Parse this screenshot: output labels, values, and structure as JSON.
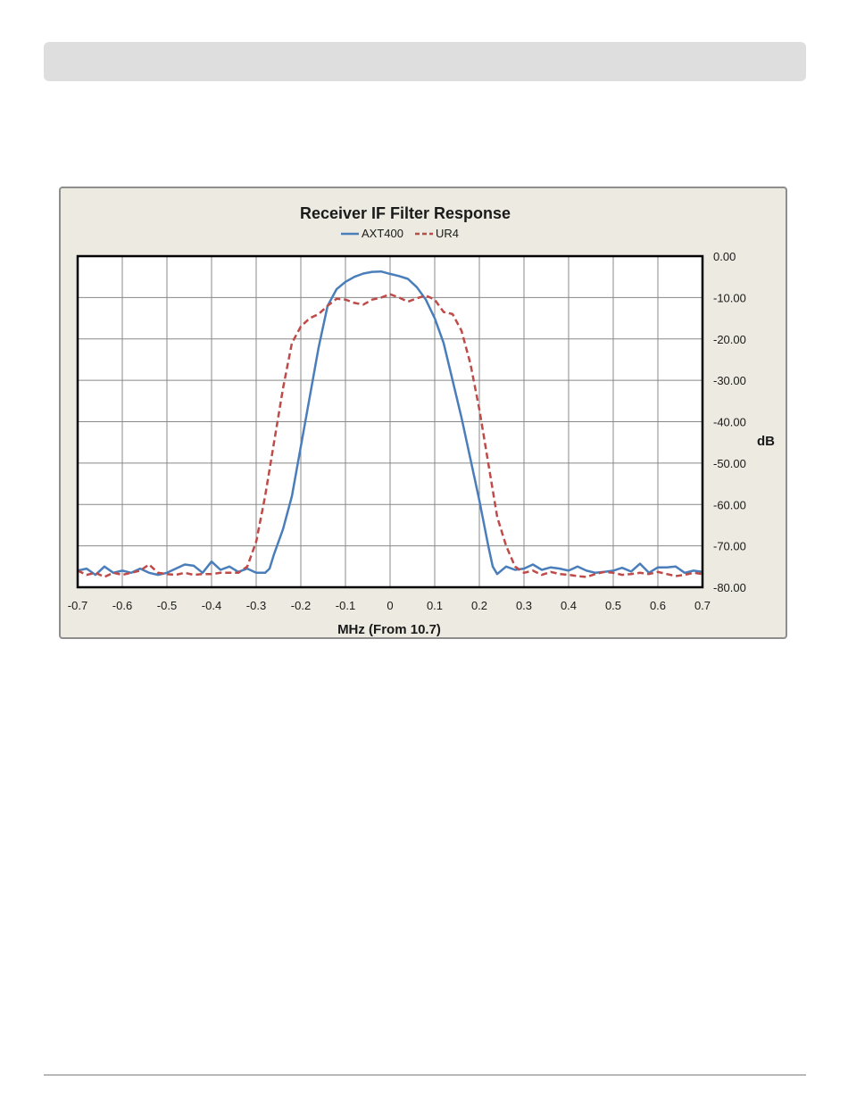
{
  "chart_data": {
    "type": "line",
    "title": "Receiver IF Filter Response",
    "xlabel": "MHz (From 10.7)",
    "ylabel": "dB",
    "xlim": [
      -0.7,
      0.7
    ],
    "ylim": [
      -80,
      0
    ],
    "x_ticks": [
      -0.7,
      -0.6,
      -0.5,
      -0.4,
      -0.3,
      -0.2,
      -0.1,
      0,
      0.1,
      0.2,
      0.3,
      0.4,
      0.5,
      0.6,
      0.7
    ],
    "x_tick_labels": [
      "-0.7",
      "-0.6",
      "-0.5",
      "-0.4",
      "-0.3",
      "-0.2",
      "-0.1",
      "0",
      "0.1",
      "0.2",
      "0.3",
      "0.4",
      "0.5",
      "0.6",
      "0.7"
    ],
    "y_ticks": [
      0,
      -10,
      -20,
      -30,
      -40,
      -50,
      -60,
      -70,
      -80
    ],
    "y_tick_labels": [
      "0.00",
      "-10.00",
      "-20.00",
      "-30.00",
      "-40.00",
      "-50.00",
      "-60.00",
      "-70.00",
      "-80.00"
    ],
    "y_axis_side": "right",
    "grid": true,
    "legend_position": "top",
    "series": [
      {
        "name": "AXT400",
        "color": "#4a7ebb",
        "style": "solid",
        "x": [
          -0.7,
          -0.68,
          -0.66,
          -0.64,
          -0.62,
          -0.6,
          -0.58,
          -0.56,
          -0.54,
          -0.52,
          -0.5,
          -0.48,
          -0.46,
          -0.44,
          -0.42,
          -0.4,
          -0.38,
          -0.36,
          -0.34,
          -0.32,
          -0.3,
          -0.28,
          -0.27,
          -0.26,
          -0.24,
          -0.22,
          -0.2,
          -0.18,
          -0.16,
          -0.14,
          -0.12,
          -0.1,
          -0.08,
          -0.06,
          -0.04,
          -0.02,
          0.0,
          0.02,
          0.04,
          0.06,
          0.08,
          0.1,
          0.12,
          0.14,
          0.16,
          0.18,
          0.2,
          0.22,
          0.23,
          0.24,
          0.26,
          0.28,
          0.3,
          0.32,
          0.34,
          0.36,
          0.38,
          0.4,
          0.42,
          0.44,
          0.46,
          0.48,
          0.5,
          0.52,
          0.54,
          0.56,
          0.58,
          0.6,
          0.62,
          0.64,
          0.66,
          0.68,
          0.7
        ],
        "y": [
          -76,
          -75.5,
          -77,
          -75,
          -76.5,
          -76,
          -76.5,
          -75.5,
          -76.5,
          -77,
          -76.5,
          -75.5,
          -74.5,
          -74.8,
          -76.5,
          -73.8,
          -75.8,
          -75,
          -76.3,
          -75.5,
          -76.5,
          -76.5,
          -75.5,
          -72,
          -66,
          -58,
          -46,
          -34,
          -22,
          -12,
          -8,
          -6.2,
          -5,
          -4.2,
          -3.8,
          -3.7,
          -4.3,
          -4.8,
          -5.5,
          -7.5,
          -10.5,
          -15,
          -21,
          -30,
          -39,
          -49,
          -59,
          -70,
          -75,
          -76.8,
          -75,
          -75.8,
          -75.5,
          -74.5,
          -75.8,
          -75.2,
          -75.5,
          -76,
          -75,
          -76,
          -76.5,
          -76.3,
          -76,
          -75.3,
          -76.2,
          -74.3,
          -76.5,
          -75.2,
          -75.2,
          -75,
          -76.5,
          -76,
          -76.3
        ]
      },
      {
        "name": "UR4",
        "color": "#be4b48",
        "style": "dashed",
        "x": [
          -0.7,
          -0.68,
          -0.66,
          -0.64,
          -0.62,
          -0.6,
          -0.58,
          -0.56,
          -0.54,
          -0.52,
          -0.5,
          -0.48,
          -0.46,
          -0.44,
          -0.42,
          -0.4,
          -0.38,
          -0.36,
          -0.34,
          -0.32,
          -0.3,
          -0.28,
          -0.26,
          -0.24,
          -0.22,
          -0.2,
          -0.18,
          -0.16,
          -0.14,
          -0.12,
          -0.1,
          -0.08,
          -0.06,
          -0.04,
          -0.02,
          0.0,
          0.02,
          0.04,
          0.06,
          0.08,
          0.1,
          0.12,
          0.14,
          0.16,
          0.18,
          0.2,
          0.22,
          0.24,
          0.26,
          0.28,
          0.3,
          0.32,
          0.34,
          0.36,
          0.38,
          0.4,
          0.42,
          0.44,
          0.46,
          0.48,
          0.5,
          0.52,
          0.54,
          0.56,
          0.58,
          0.6,
          0.62,
          0.64,
          0.66,
          0.68,
          0.7
        ],
        "y": [
          -76,
          -77,
          -76.5,
          -77.5,
          -76.5,
          -77,
          -76.5,
          -76,
          -74.5,
          -76.5,
          -76.8,
          -77,
          -76.5,
          -77,
          -76.8,
          -76.8,
          -76.5,
          -76.5,
          -76.5,
          -75,
          -69,
          -58,
          -45,
          -32,
          -21,
          -17,
          -15,
          -14,
          -12,
          -10.3,
          -10.5,
          -11.3,
          -11.7,
          -10.5,
          -10,
          -9.2,
          -10,
          -11,
          -10.2,
          -9.5,
          -10.5,
          -13.5,
          -14,
          -18,
          -26,
          -37,
          -50,
          -63,
          -70,
          -75,
          -76.5,
          -76,
          -77,
          -76.3,
          -76.8,
          -77,
          -77.3,
          -77.5,
          -76.8,
          -76.3,
          -76.5,
          -77,
          -76.8,
          -76.5,
          -76.8,
          -76.3,
          -76.8,
          -77.3,
          -77,
          -76.5,
          -76.8
        ]
      }
    ]
  }
}
